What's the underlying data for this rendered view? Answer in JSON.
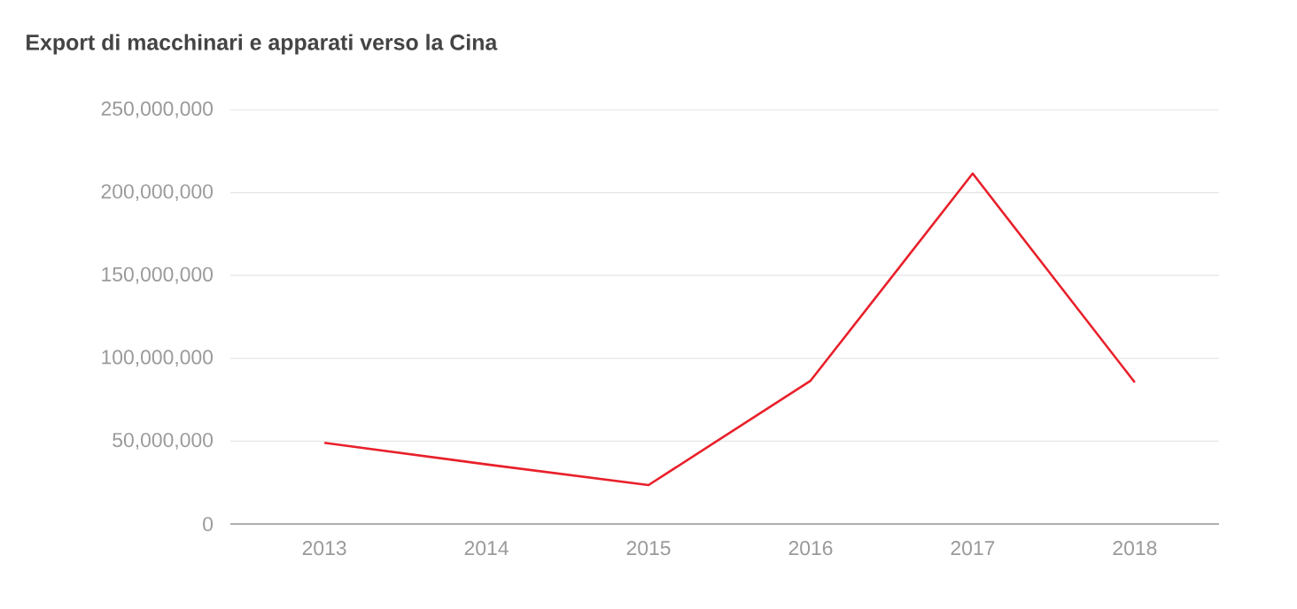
{
  "chart_data": {
    "type": "line",
    "title": "Export di macchinari e apparati verso la Cina",
    "categories": [
      "2013",
      "2014",
      "2015",
      "2016",
      "2017",
      "2018"
    ],
    "series": [
      {
        "color": "#e8202a",
        "values": [
          49000000,
          36000000,
          23500000,
          86500000,
          211500000,
          85500000
        ]
      }
    ],
    "ylim": [
      0,
      250000000
    ],
    "yticks": [
      {
        "value": 0,
        "label": "0"
      },
      {
        "value": 50000000,
        "label": "50,000,000"
      },
      {
        "value": 100000000,
        "label": "100,000,000"
      },
      {
        "value": 150000000,
        "label": "150,000,000"
      },
      {
        "value": 200000000,
        "label": "200,000,000"
      },
      {
        "value": 250000000,
        "label": "250,000,000"
      }
    ],
    "grid": "y",
    "marker": "none",
    "line_style": "solid"
  }
}
